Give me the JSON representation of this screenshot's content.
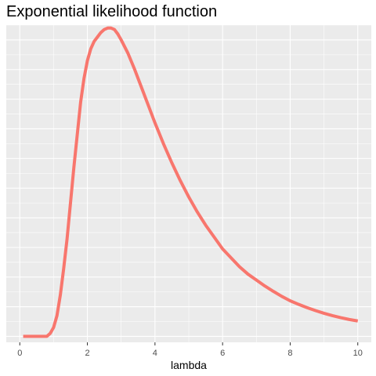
{
  "chart_data": {
    "type": "line",
    "title": "Exponential likelihood function",
    "xlabel": "lambda",
    "ylabel": "",
    "xlim": [
      -0.4,
      10.4
    ],
    "ylim": [
      -0.02,
      1.05
    ],
    "x_ticks": [
      0,
      2,
      4,
      6,
      8,
      10
    ],
    "x_tick_labels": [
      "0",
      "2",
      "4",
      "6",
      "8",
      "10"
    ],
    "y_tick_labels": [],
    "grid": true,
    "legend": "none",
    "series": [
      {
        "color": "#F8766D",
        "x": [
          0.1,
          0.8,
          0.9,
          1.0,
          1.1,
          1.2,
          1.3,
          1.4,
          1.5,
          1.6,
          1.7,
          1.8,
          1.9,
          2.0,
          2.1,
          2.2,
          2.3,
          2.4,
          2.5,
          2.6,
          2.7,
          2.8,
          2.9,
          3.0,
          3.2,
          3.4,
          3.6,
          3.8,
          4.0,
          4.25,
          4.5,
          4.75,
          5.0,
          5.25,
          5.5,
          5.75,
          6.0,
          6.25,
          6.5,
          6.75,
          7.0,
          7.25,
          7.5,
          7.75,
          8.0,
          8.25,
          8.5,
          8.75,
          9.0,
          9.25,
          9.5,
          9.75,
          10.0
        ],
        "y": [
          0.0,
          0.0,
          0.01,
          0.03,
          0.07,
          0.14,
          0.23,
          0.33,
          0.45,
          0.57,
          0.68,
          0.79,
          0.87,
          0.93,
          0.97,
          0.995,
          1.01,
          1.025,
          1.035,
          1.04,
          1.04,
          1.035,
          1.02,
          1.0,
          0.955,
          0.9,
          0.84,
          0.78,
          0.72,
          0.65,
          0.585,
          0.525,
          0.47,
          0.42,
          0.375,
          0.335,
          0.295,
          0.265,
          0.235,
          0.21,
          0.19,
          0.17,
          0.152,
          0.135,
          0.12,
          0.108,
          0.097,
          0.087,
          0.078,
          0.07,
          0.063,
          0.057,
          0.052
        ]
      }
    ]
  }
}
